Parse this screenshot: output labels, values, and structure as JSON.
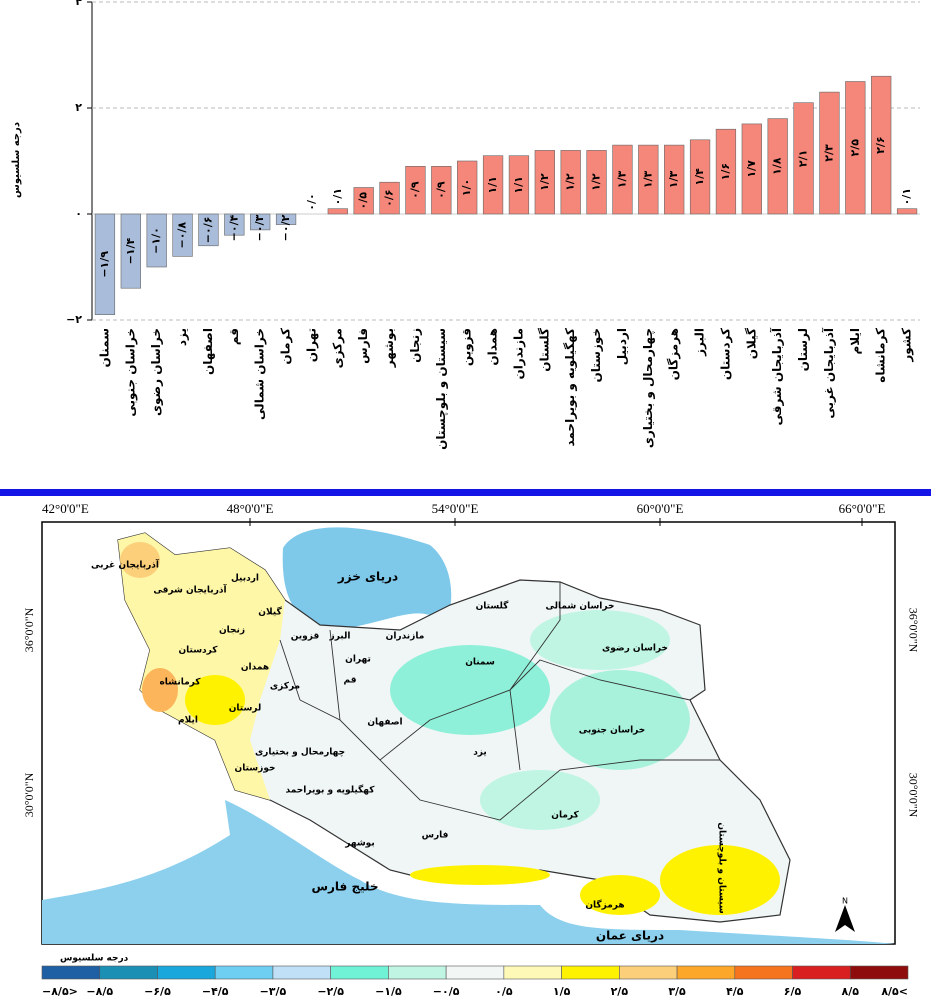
{
  "chart_data": {
    "type": "bar",
    "y_label": "درجه سلسیوس",
    "categories": [
      "سمنان",
      "خراسان جنوبی",
      "خراسان رضوی",
      "یزد",
      "اصفهان",
      "قم",
      "خراسان شمالی",
      "کرمان",
      "تهران",
      "مرکزی",
      "فارس",
      "بوشهر",
      "زنجان",
      "سیستان و بلوچستان",
      "قزوین",
      "همدان",
      "مازندران",
      "گلستان",
      "کهگیلویه و بویراحمد",
      "خوزستان",
      "اردبیل",
      "چهارمحال و بختیاری",
      "هرمزگان",
      "البرز",
      "کردستان",
      "گیلان",
      "آذربایجان شرقی",
      "لرستان",
      "آذربایجان غربی",
      "ایلام",
      "کرمانشاه",
      "کشور"
    ],
    "values": [
      -1.9,
      -1.4,
      -1.0,
      -0.8,
      -0.6,
      -0.4,
      -0.3,
      -0.2,
      0.0,
      0.1,
      0.5,
      0.6,
      0.9,
      0.9,
      1.0,
      1.1,
      1.1,
      1.2,
      1.2,
      1.2,
      1.3,
      1.3,
      1.3,
      1.4,
      1.6,
      1.7,
      1.8,
      2.1,
      2.3,
      2.5,
      2.6,
      0.1
    ],
    "value_labels": [
      "−۱/۹",
      "−۱/۴",
      "−۱/۰",
      "−۰/۸",
      "−۰/۶",
      "−۰/۴",
      "−۰/۳",
      "−۰/۲",
      "۰/۰",
      "۰/۱",
      "۰/۵",
      "۰/۶",
      "۰/۹",
      "۰/۹",
      "۱/۰",
      "۱/۱",
      "۱/۱",
      "۱/۲",
      "۱/۲",
      "۱/۲",
      "۱/۳",
      "۱/۳",
      "۱/۳",
      "۱/۴",
      "۱/۶",
      "۱/۷",
      "۱/۸",
      "۲/۱",
      "۲/۳",
      "۲/۵",
      "۲/۶",
      "۰/۱"
    ],
    "color_negative": "#a9bcd9",
    "color_positive": "#f4877a",
    "ylim": [
      -2,
      4
    ],
    "yticks": [
      {
        "value": -2,
        "label": "−۲"
      },
      {
        "value": 0,
        "label": "۰"
      },
      {
        "value": 2,
        "label": "۲"
      },
      {
        "value": 4,
        "label": "۴"
      }
    ],
    "grid": true
  },
  "map": {
    "lon_labels": [
      "42°0'0\"E",
      "48°0'0\"E",
      "54°0'0\"E",
      "60°0'0\"E",
      "66°0'0\"E"
    ],
    "lat_labels": [
      "36°0'0\"N",
      "30°0'0\"N"
    ],
    "regions": [
      "آذربایجان غربی",
      "اردبیل",
      "آذربایجان شرقی",
      "گیلان",
      "زنجان",
      "قزوین",
      "البرز",
      "مازندران",
      "گلستان",
      "خراسان شمالی",
      "خراسان رضوی",
      "کردستان",
      "همدان",
      "تهران",
      "سمنان",
      "قم",
      "کرمانشاه",
      "مرکزی",
      "لرستان",
      "ایلام",
      "اصفهان",
      "خراسان جنوبی",
      "چهارمحال و بختیاری",
      "یزد",
      "خوزستان",
      "کهگیلویه و بویراحمد",
      "کرمان",
      "فارس",
      "بوشهر",
      "سیستان و بلوچستان",
      "هرمزگان"
    ],
    "waters": [
      "دریای خزر",
      "خلیج فارس",
      "دریای عمان"
    ],
    "north": "N",
    "legend_title": "درجه سلسیوس",
    "legend_colors": [
      "#1f5fa3",
      "#1b8fb4",
      "#1aa7dc",
      "#6fcff2",
      "#bfe0f6",
      "#6ff2d6",
      "#bff5e2",
      "#f2f7f6",
      "#fff9b8",
      "#fff200",
      "#fccf7a",
      "#fca62a",
      "#f7741e",
      "#d91f1f",
      "#8f0c0c"
    ],
    "legend_labels": [
      "−۸/۵>",
      "−۸/۵",
      "−۶/۵",
      "−۴/۵",
      "−۳/۵",
      "−۲/۵",
      "−۱/۵",
      "−۰/۵",
      "۰/۵",
      "۱/۵",
      "۲/۵",
      "۳/۵",
      "۴/۵",
      "۶/۵",
      "۸/۵",
      "۸/۵<"
    ]
  }
}
